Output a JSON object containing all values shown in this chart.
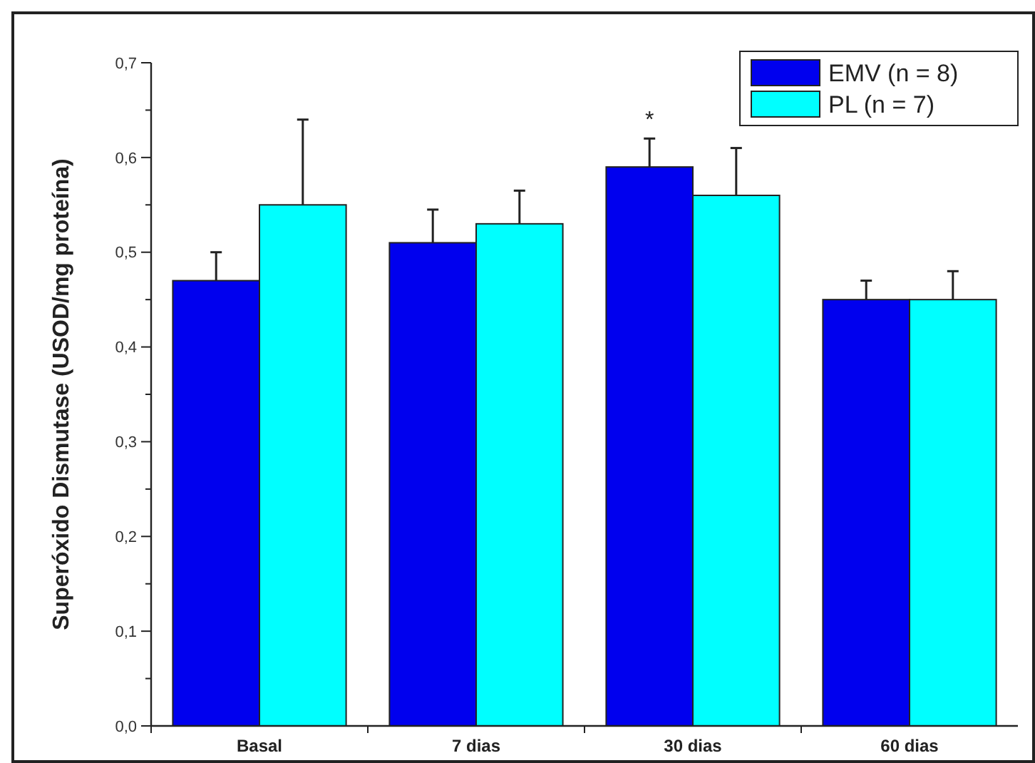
{
  "chart_data": {
    "type": "bar",
    "ylabel": "Superóxido Dismutase (USOD/mg proteína)",
    "categories": [
      "Basal",
      "7 dias",
      "30 dias",
      "60 dias"
    ],
    "series": [
      {
        "name": "EMV (n = 8)",
        "color": "#0000ee",
        "values": [
          0.47,
          0.51,
          0.59,
          0.45
        ],
        "errors": [
          0.03,
          0.035,
          0.03,
          0.02
        ]
      },
      {
        "name": "PL (n = 7)",
        "color": "#00ffff",
        "values": [
          0.55,
          0.53,
          0.56,
          0.45
        ],
        "errors": [
          0.09,
          0.035,
          0.05,
          0.03
        ]
      }
    ],
    "ylim": [
      0,
      0.7
    ],
    "yticks": [
      {
        "value": 0,
        "label": "0,0"
      },
      {
        "value": 0.05,
        "label": null
      },
      {
        "value": 0.1,
        "label": "0,1"
      },
      {
        "value": 0.15,
        "label": null
      },
      {
        "value": 0.2,
        "label": "0,2"
      },
      {
        "value": 0.25,
        "label": null
      },
      {
        "value": 0.3,
        "label": "0,3"
      },
      {
        "value": 0.35,
        "label": null
      },
      {
        "value": 0.4,
        "label": "0,4"
      },
      {
        "value": 0.45,
        "label": null
      },
      {
        "value": 0.5,
        "label": "0,5"
      },
      {
        "value": 0.55,
        "label": null
      },
      {
        "value": 0.6,
        "label": "0,6"
      },
      {
        "value": 0.65,
        "label": null
      },
      {
        "value": 0.7,
        "label": "0,7"
      }
    ],
    "annotations": [
      "*"
    ],
    "legend": "top right",
    "grid": false
  }
}
